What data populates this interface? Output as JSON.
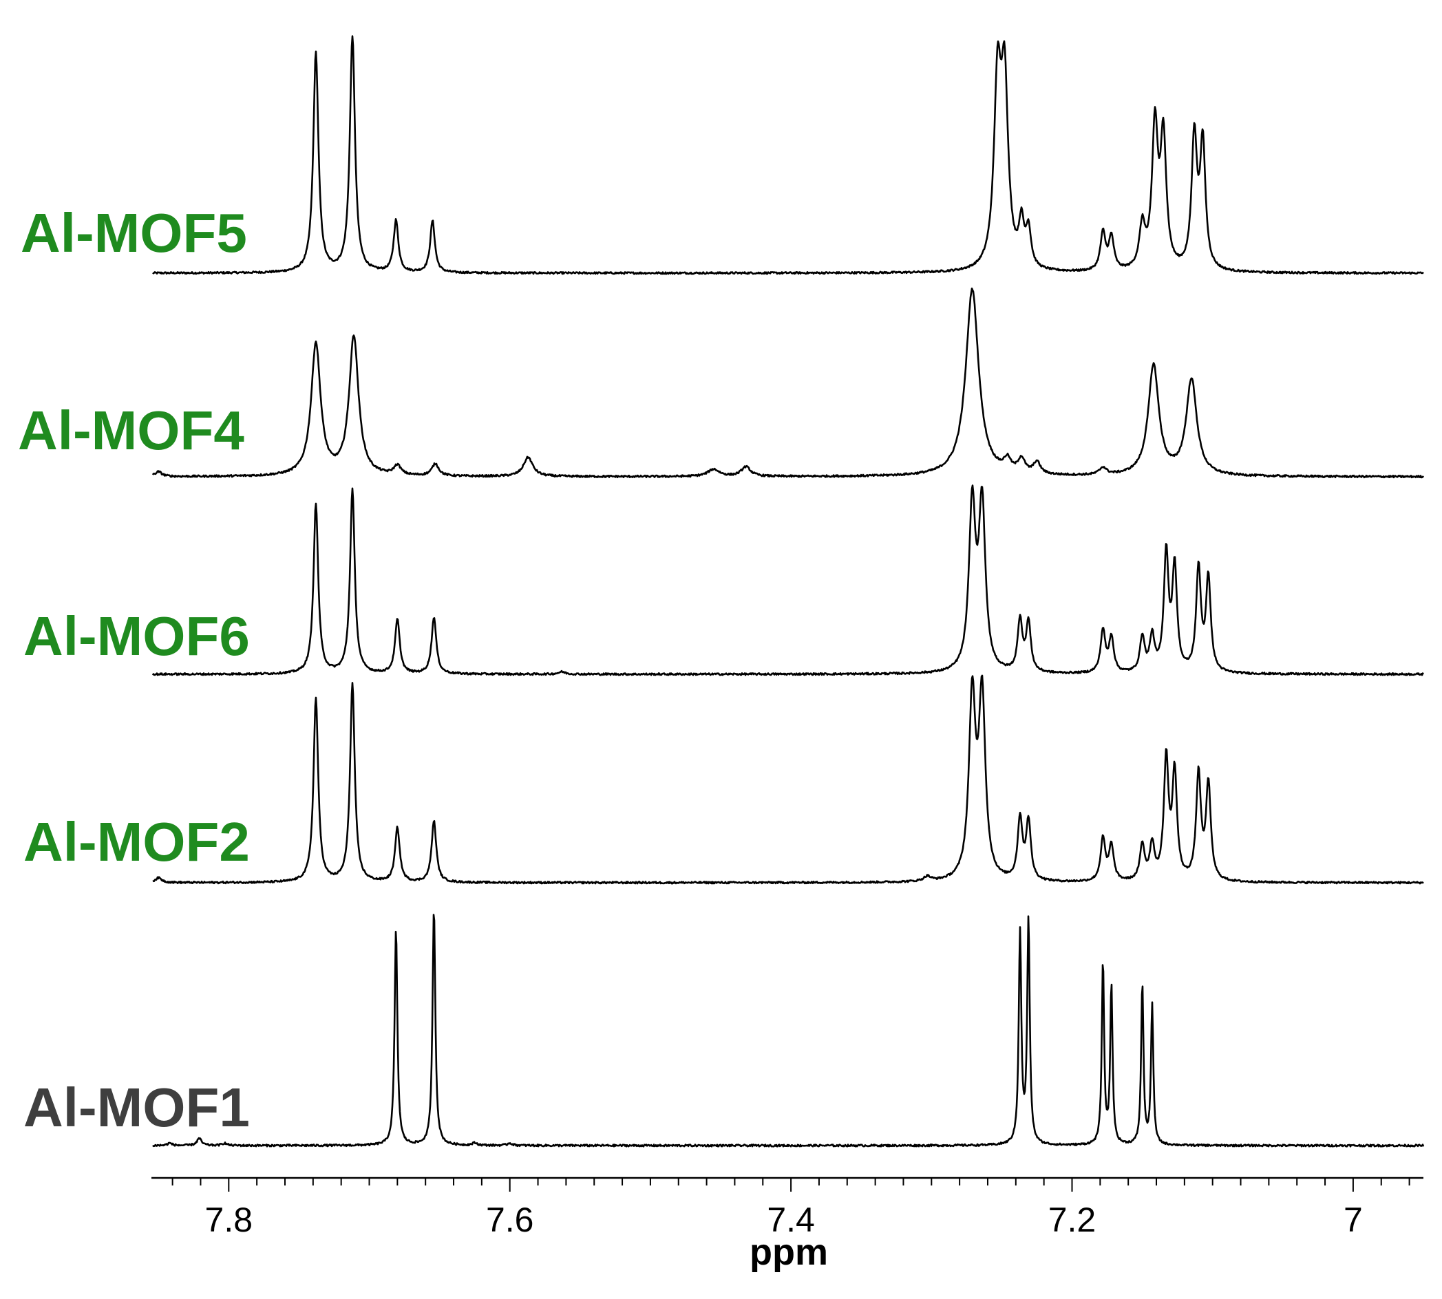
{
  "chart_data": {
    "type": "line",
    "xlabel": "ppm",
    "x_reversed": true,
    "xlim": [
      7.855,
      6.95
    ],
    "major_ticks": [
      7.8,
      7.6,
      7.4,
      7.2,
      7
    ],
    "tick_labels": [
      "7.8",
      "7.6",
      "7.4",
      "7.2",
      "7"
    ],
    "minor_tick_step": 0.02,
    "colors": {
      "green_label": "#1f8b1f",
      "gray_label": "#3f3f3f",
      "trace": "#000000"
    },
    "series": [
      {
        "name": "Al-MOF5",
        "label_color": "green",
        "peaks": [
          {
            "ppm": 7.738,
            "h": 0.93,
            "w": 0.0022
          },
          {
            "ppm": 7.712,
            "h": 1.0,
            "w": 0.0022
          },
          {
            "ppm": 7.681,
            "h": 0.22,
            "w": 0.002
          },
          {
            "ppm": 7.655,
            "h": 0.22,
            "w": 0.002
          },
          {
            "ppm": 7.253,
            "h": 0.76,
            "w": 0.003
          },
          {
            "ppm": 7.248,
            "h": 0.76,
            "w": 0.003
          },
          {
            "ppm": 7.236,
            "h": 0.18,
            "w": 0.0022
          },
          {
            "ppm": 7.231,
            "h": 0.16,
            "w": 0.0022
          },
          {
            "ppm": 7.178,
            "h": 0.16,
            "w": 0.0022
          },
          {
            "ppm": 7.172,
            "h": 0.14,
            "w": 0.0022
          },
          {
            "ppm": 7.15,
            "h": 0.18,
            "w": 0.0025
          },
          {
            "ppm": 7.141,
            "h": 0.6,
            "w": 0.0025
          },
          {
            "ppm": 7.135,
            "h": 0.55,
            "w": 0.0025
          },
          {
            "ppm": 7.113,
            "h": 0.56,
            "w": 0.0023
          },
          {
            "ppm": 7.107,
            "h": 0.53,
            "w": 0.0023
          }
        ]
      },
      {
        "name": "Al-MOF4",
        "label_color": "green",
        "peaks": [
          {
            "ppm": 7.85,
            "h": 0.02,
            "w": 0.003
          },
          {
            "ppm": 7.738,
            "h": 0.55,
            "w": 0.004
          },
          {
            "ppm": 7.711,
            "h": 0.58,
            "w": 0.004
          },
          {
            "ppm": 7.68,
            "h": 0.04,
            "w": 0.003
          },
          {
            "ppm": 7.653,
            "h": 0.05,
            "w": 0.003
          },
          {
            "ppm": 7.587,
            "h": 0.08,
            "w": 0.004
          },
          {
            "ppm": 7.455,
            "h": 0.03,
            "w": 0.005
          },
          {
            "ppm": 7.432,
            "h": 0.04,
            "w": 0.004
          },
          {
            "ppm": 7.271,
            "h": 0.78,
            "w": 0.0055
          },
          {
            "ppm": 7.246,
            "h": 0.05,
            "w": 0.003
          },
          {
            "ppm": 7.236,
            "h": 0.06,
            "w": 0.003
          },
          {
            "ppm": 7.225,
            "h": 0.05,
            "w": 0.003
          },
          {
            "ppm": 7.178,
            "h": 0.03,
            "w": 0.003
          },
          {
            "ppm": 7.142,
            "h": 0.46,
            "w": 0.0045
          },
          {
            "ppm": 7.115,
            "h": 0.4,
            "w": 0.0045
          }
        ]
      },
      {
        "name": "Al-MOF6",
        "label_color": "green",
        "peaks": [
          {
            "ppm": 7.738,
            "h": 0.72,
            "w": 0.002
          },
          {
            "ppm": 7.712,
            "h": 0.78,
            "w": 0.002
          },
          {
            "ppm": 7.68,
            "h": 0.23,
            "w": 0.002
          },
          {
            "ppm": 7.654,
            "h": 0.24,
            "w": 0.002
          },
          {
            "ppm": 7.563,
            "h": 0.01,
            "w": 0.003
          },
          {
            "ppm": 7.271,
            "h": 0.7,
            "w": 0.0028
          },
          {
            "ppm": 7.264,
            "h": 0.7,
            "w": 0.0028
          },
          {
            "ppm": 7.237,
            "h": 0.22,
            "w": 0.002
          },
          {
            "ppm": 7.231,
            "h": 0.21,
            "w": 0.002
          },
          {
            "ppm": 7.178,
            "h": 0.18,
            "w": 0.002
          },
          {
            "ppm": 7.172,
            "h": 0.15,
            "w": 0.002
          },
          {
            "ppm": 7.15,
            "h": 0.15,
            "w": 0.002
          },
          {
            "ppm": 7.143,
            "h": 0.15,
            "w": 0.002
          },
          {
            "ppm": 7.133,
            "h": 0.5,
            "w": 0.002
          },
          {
            "ppm": 7.127,
            "h": 0.44,
            "w": 0.002
          },
          {
            "ppm": 7.11,
            "h": 0.44,
            "w": 0.002
          },
          {
            "ppm": 7.103,
            "h": 0.4,
            "w": 0.002
          }
        ]
      },
      {
        "name": "Al-MOF2",
        "label_color": "green",
        "peaks": [
          {
            "ppm": 7.85,
            "h": 0.02,
            "w": 0.003
          },
          {
            "ppm": 7.738,
            "h": 0.78,
            "w": 0.002
          },
          {
            "ppm": 7.712,
            "h": 0.84,
            "w": 0.002
          },
          {
            "ppm": 7.68,
            "h": 0.23,
            "w": 0.002
          },
          {
            "ppm": 7.654,
            "h": 0.26,
            "w": 0.002
          },
          {
            "ppm": 7.303,
            "h": 0.02,
            "w": 0.003
          },
          {
            "ppm": 7.271,
            "h": 0.77,
            "w": 0.0028
          },
          {
            "ppm": 7.264,
            "h": 0.77,
            "w": 0.0028
          },
          {
            "ppm": 7.237,
            "h": 0.26,
            "w": 0.002
          },
          {
            "ppm": 7.231,
            "h": 0.25,
            "w": 0.002
          },
          {
            "ppm": 7.178,
            "h": 0.18,
            "w": 0.002
          },
          {
            "ppm": 7.172,
            "h": 0.15,
            "w": 0.002
          },
          {
            "ppm": 7.15,
            "h": 0.15,
            "w": 0.002
          },
          {
            "ppm": 7.143,
            "h": 0.15,
            "w": 0.002
          },
          {
            "ppm": 7.133,
            "h": 0.51,
            "w": 0.002
          },
          {
            "ppm": 7.127,
            "h": 0.45,
            "w": 0.002
          },
          {
            "ppm": 7.11,
            "h": 0.45,
            "w": 0.002
          },
          {
            "ppm": 7.103,
            "h": 0.41,
            "w": 0.002
          }
        ]
      },
      {
        "name": "Al-MOF1",
        "label_color": "gray",
        "peaks": [
          {
            "ppm": 7.842,
            "h": 0.01,
            "w": 0.002
          },
          {
            "ppm": 7.821,
            "h": 0.03,
            "w": 0.002
          },
          {
            "ppm": 7.803,
            "h": 0.01,
            "w": 0.002
          },
          {
            "ppm": 7.681,
            "h": 0.91,
            "w": 0.0012
          },
          {
            "ppm": 7.654,
            "h": 1.0,
            "w": 0.0012
          },
          {
            "ppm": 7.625,
            "h": 0.01,
            "w": 0.002
          },
          {
            "ppm": 7.6,
            "h": 0.01,
            "w": 0.002
          },
          {
            "ppm": 7.237,
            "h": 0.89,
            "w": 0.0011
          },
          {
            "ppm": 7.231,
            "h": 0.94,
            "w": 0.0011
          },
          {
            "ppm": 7.178,
            "h": 0.77,
            "w": 0.001
          },
          {
            "ppm": 7.172,
            "h": 0.67,
            "w": 0.001
          },
          {
            "ppm": 7.15,
            "h": 0.68,
            "w": 0.001
          },
          {
            "ppm": 7.143,
            "h": 0.59,
            "w": 0.001
          }
        ]
      }
    ]
  }
}
